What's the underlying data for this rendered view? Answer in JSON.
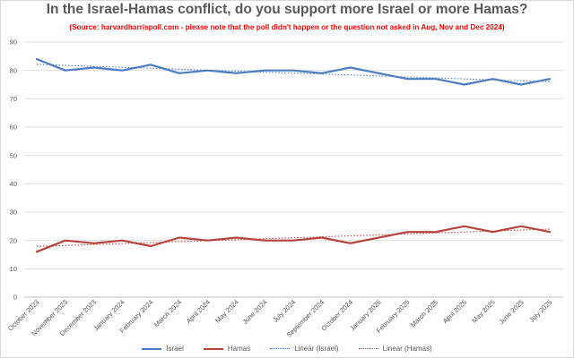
{
  "chart_data": {
    "type": "line",
    "title": "In the Israel-Hamas conflict, do you support more Israel or more Hamas?",
    "subtitle": "(Source: harvardharrispoll.com - please note that the poll didn't happen or the question not asked in Aug, Nov and Dec 2024)",
    "categories": [
      "October 2023",
      "November 2023",
      "December 2023",
      "January 2024",
      "February 2024",
      "March 2024",
      "April 2024",
      "May 2024",
      "June 2024",
      "July 2024",
      "September 2024",
      "October 2024",
      "January 2025",
      "February 2025",
      "March 2025",
      "April 2025",
      "May 2025",
      "June 2025",
      "July 2025"
    ],
    "series": [
      {
        "name": "Israel",
        "color": "#4f7cc0",
        "values": [
          84,
          80,
          81,
          80,
          82,
          79,
          80,
          79,
          80,
          80,
          79,
          81,
          79,
          77,
          77,
          75,
          77,
          75,
          77
        ]
      },
      {
        "name": "Hamas",
        "color": "#b5443f",
        "values": [
          16,
          20,
          19,
          20,
          18,
          21,
          20,
          21,
          20,
          20,
          21,
          19,
          21,
          23,
          23,
          25,
          23,
          25,
          23
        ]
      }
    ],
    "trendlines": [
      {
        "name": "Linear (Israel)",
        "color": "#4f7cc0",
        "style": "dotted",
        "of_series": "Israel"
      },
      {
        "name": "Linear (Hamas)",
        "color": "#b5443f",
        "style": "dotted",
        "of_series": "Hamas"
      }
    ],
    "yticks": [
      "0",
      "10",
      "20",
      "30",
      "40",
      "50",
      "60",
      "70",
      "80",
      "90"
    ],
    "ylim": [
      0,
      90
    ],
    "grid": true,
    "legend_position": "bottom",
    "colors": {
      "title": "#595959",
      "subtitle": "#ff0000",
      "grid": "#d9d9d9",
      "axis": "#bfbfbf"
    }
  }
}
